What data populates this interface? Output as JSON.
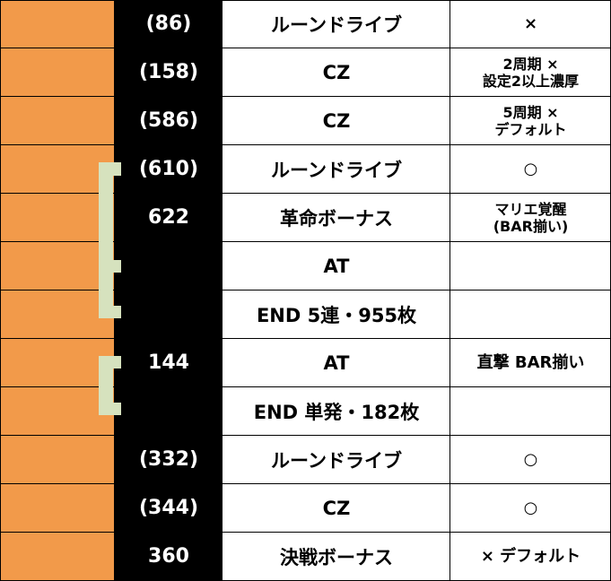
{
  "rows": [
    {
      "game": "(86)",
      "event": "ルーンドライブ",
      "note": [
        "×"
      ]
    },
    {
      "game": "(158)",
      "event": "CZ",
      "note": [
        "2周期 ×",
        "設定2以上濃厚"
      ]
    },
    {
      "game": "(586)",
      "event": "CZ",
      "note": [
        "5周期 ×",
        "デフォルト"
      ]
    },
    {
      "game": "(610)",
      "event": "ルーンドライブ",
      "note": [
        "○"
      ]
    },
    {
      "game": "622",
      "event": "革命ボーナス",
      "note": [
        "マリエ覚醒",
        "(BAR揃い)"
      ]
    },
    {
      "game": "",
      "event": "AT",
      "note": [
        ""
      ]
    },
    {
      "game": "",
      "event": "END 5連・955枚",
      "note": [
        ""
      ]
    },
    {
      "game": "144",
      "event": "AT",
      "note": [
        "直撃 BAR揃い"
      ]
    },
    {
      "game": "",
      "event": "END 単発・182枚",
      "note": [
        ""
      ]
    },
    {
      "game": "(332)",
      "event": "ルーンドライブ",
      "note": [
        "○"
      ]
    },
    {
      "game": "(344)",
      "event": "CZ",
      "note": [
        "○"
      ]
    },
    {
      "game": "360",
      "event": "決戦ボーナス",
      "note": [
        "× デフォルト"
      ]
    }
  ],
  "colors": {
    "orange": "#f29a4a",
    "black": "#000000",
    "bracket": "#d6e2be"
  }
}
